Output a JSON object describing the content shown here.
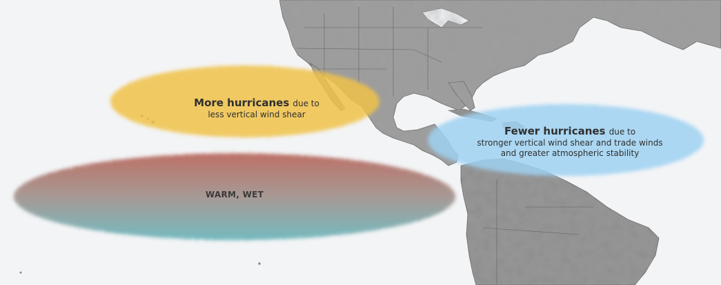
{
  "map": {
    "colors": {
      "ocean": "#f3f4f6",
      "land": "#9c9c9c",
      "land_dark": "#6f6f6f",
      "border": "#4b4b4b",
      "yellow_zone": "#f0c248",
      "blue_zone": "#9fd2f2",
      "warm_red": "#b35a4e",
      "wet_teal": "#5fb1b6"
    },
    "zones": {
      "more_hurricanes": {
        "lead": "More hurricanes",
        "tail": "due to",
        "line2": "less vertical wind shear"
      },
      "fewer_hurricanes": {
        "lead": "Fewer hurricanes",
        "tail": "due to",
        "line2": "stronger vertical wind shear and trade winds",
        "line3": "and greater atmospheric stability"
      },
      "warm_wet": {
        "label": "WARM, WET"
      }
    }
  }
}
